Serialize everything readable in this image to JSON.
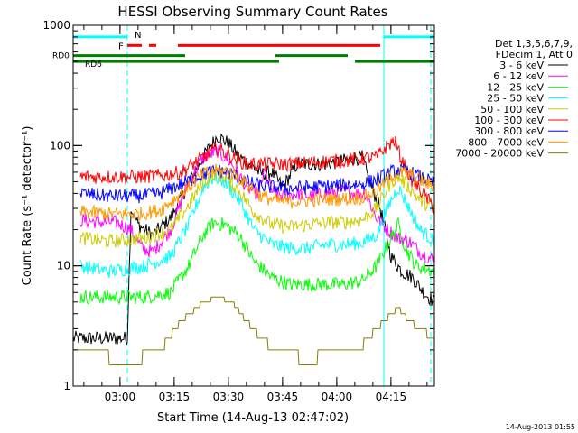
{
  "chart_data": {
    "type": "line",
    "title": "HESSI Observing Summary Count Rates",
    "xlabel": "Start Time (14-Aug-13 02:47:02)",
    "ylabel": "Count Rate (s⁻¹ detector⁻¹)",
    "yscale": "log",
    "ylim": [
      1,
      1000
    ],
    "xlim_minutes": [
      0,
      100
    ],
    "grid": false,
    "legend_position": "right",
    "x_tick_labels": [
      "03:00",
      "03:15",
      "03:30",
      "03:45",
      "04:00",
      "04:15"
    ],
    "x_tick_minutes": [
      12.97,
      27.97,
      42.97,
      57.97,
      72.97,
      87.97
    ],
    "y_tick_labels": [
      "1",
      "10",
      "100",
      "1000"
    ],
    "y_tick_values": [
      1,
      10,
      100,
      1000
    ],
    "legend_header": [
      "Det 1,3,5,6,7,9,",
      "FDecim 1, Att 0"
    ],
    "series": [
      {
        "name": "3 - 6 keV",
        "color": "#000000",
        "points": [
          [
            0,
            2.5
          ],
          [
            15,
            2.5
          ],
          [
            16,
            30
          ],
          [
            18,
            22
          ],
          [
            22,
            18
          ],
          [
            27,
            25
          ],
          [
            33,
            55
          ],
          [
            37,
            90
          ],
          [
            40,
            120
          ],
          [
            43,
            105
          ],
          [
            46,
            80
          ],
          [
            49,
            70
          ],
          [
            52,
            58
          ],
          [
            55,
            60
          ],
          [
            58,
            45
          ],
          [
            62,
            70
          ],
          [
            66,
            70
          ],
          [
            70,
            70
          ],
          [
            75,
            75
          ],
          [
            80,
            80
          ],
          [
            82,
            50
          ],
          [
            85,
            30
          ],
          [
            88,
            12
          ],
          [
            91,
            9
          ],
          [
            94,
            8
          ],
          [
            97,
            6
          ],
          [
            100,
            5
          ]
        ]
      },
      {
        "name": "6 - 12 keV",
        "color": "#ff00ff",
        "points": [
          [
            2,
            24
          ],
          [
            8,
            23
          ],
          [
            12,
            23
          ],
          [
            16,
            20
          ],
          [
            19,
            14
          ],
          [
            22,
            13
          ],
          [
            27,
            20
          ],
          [
            32,
            50
          ],
          [
            36,
            80
          ],
          [
            40,
            90
          ],
          [
            44,
            70
          ],
          [
            48,
            45
          ],
          [
            51,
            40
          ],
          [
            53,
            60
          ],
          [
            55,
            42
          ],
          [
            58,
            38
          ],
          [
            62,
            40
          ],
          [
            66,
            38
          ],
          [
            70,
            40
          ],
          [
            74,
            42
          ],
          [
            78,
            40
          ],
          [
            81,
            40
          ],
          [
            84,
            25
          ],
          [
            87,
            20
          ],
          [
            90,
            17
          ],
          [
            93,
            16
          ],
          [
            96,
            13
          ],
          [
            100,
            11
          ]
        ]
      },
      {
        "name": "12 - 25 keV",
        "color": "#00ff00",
        "points": [
          [
            2,
            5.5
          ],
          [
            10,
            5.5
          ],
          [
            20,
            5.5
          ],
          [
            27,
            6
          ],
          [
            32,
            10
          ],
          [
            36,
            18
          ],
          [
            39,
            23
          ],
          [
            42,
            22
          ],
          [
            46,
            18
          ],
          [
            50,
            11
          ],
          [
            55,
            8
          ],
          [
            60,
            7
          ],
          [
            65,
            7
          ],
          [
            70,
            7
          ],
          [
            75,
            7
          ],
          [
            80,
            7.5
          ],
          [
            84,
            10
          ],
          [
            88,
            17
          ],
          [
            90,
            22
          ],
          [
            92,
            14
          ],
          [
            95,
            10
          ],
          [
            100,
            9
          ]
        ]
      },
      {
        "name": "25 - 50 keV",
        "color": "#00ffff",
        "points": [
          [
            2,
            10
          ],
          [
            10,
            9
          ],
          [
            20,
            10
          ],
          [
            27,
            12
          ],
          [
            32,
            22
          ],
          [
            36,
            45
          ],
          [
            39,
            55
          ],
          [
            42,
            50
          ],
          [
            46,
            35
          ],
          [
            50,
            20
          ],
          [
            55,
            15
          ],
          [
            60,
            14
          ],
          [
            65,
            14
          ],
          [
            70,
            15
          ],
          [
            75,
            15
          ],
          [
            80,
            15.5
          ],
          [
            84,
            18
          ],
          [
            88,
            35
          ],
          [
            90,
            45
          ],
          [
            93,
            30
          ],
          [
            96,
            20
          ],
          [
            100,
            16
          ]
        ]
      },
      {
        "name": "50 - 100 keV",
        "color": "#cccc00",
        "points": [
          [
            2,
            17
          ],
          [
            10,
            16
          ],
          [
            20,
            17
          ],
          [
            27,
            20
          ],
          [
            32,
            32
          ],
          [
            36,
            50
          ],
          [
            39,
            58
          ],
          [
            42,
            55
          ],
          [
            46,
            42
          ],
          [
            50,
            28
          ],
          [
            55,
            22
          ],
          [
            60,
            21
          ],
          [
            65,
            22
          ],
          [
            70,
            23
          ],
          [
            75,
            23
          ],
          [
            80,
            24
          ],
          [
            84,
            30
          ],
          [
            88,
            50
          ],
          [
            90,
            55
          ],
          [
            93,
            45
          ],
          [
            96,
            35
          ],
          [
            100,
            30
          ]
        ]
      },
      {
        "name": "100 - 300 keV",
        "color": "#ff0000",
        "points": [
          [
            2,
            55
          ],
          [
            10,
            55
          ],
          [
            18,
            55
          ],
          [
            24,
            56
          ],
          [
            30,
            60
          ],
          [
            36,
            80
          ],
          [
            40,
            95
          ],
          [
            44,
            80
          ],
          [
            48,
            70
          ],
          [
            52,
            70
          ],
          [
            56,
            70
          ],
          [
            60,
            70
          ],
          [
            65,
            72
          ],
          [
            70,
            74
          ],
          [
            75,
            75
          ],
          [
            80,
            78
          ],
          [
            84,
            80
          ],
          [
            87,
            100
          ],
          [
            89,
            110
          ],
          [
            91,
            75
          ],
          [
            94,
            50
          ],
          [
            97,
            40
          ],
          [
            100,
            30
          ]
        ]
      },
      {
        "name": "300 - 800 keV",
        "color": "#0000ff",
        "points": [
          [
            2,
            40
          ],
          [
            10,
            38
          ],
          [
            18,
            38
          ],
          [
            24,
            40
          ],
          [
            30,
            48
          ],
          [
            36,
            58
          ],
          [
            40,
            62
          ],
          [
            44,
            58
          ],
          [
            48,
            50
          ],
          [
            52,
            46
          ],
          [
            56,
            45
          ],
          [
            60,
            44
          ],
          [
            65,
            45
          ],
          [
            70,
            46
          ],
          [
            75,
            47
          ],
          [
            80,
            48
          ],
          [
            84,
            52
          ],
          [
            88,
            60
          ],
          [
            90,
            63
          ],
          [
            93,
            60
          ],
          [
            96,
            55
          ],
          [
            100,
            48
          ]
        ]
      },
      {
        "name": "800 - 7000 keV",
        "color": "#ff9900",
        "points": [
          [
            2,
            28
          ],
          [
            10,
            27
          ],
          [
            18,
            27
          ],
          [
            24,
            29
          ],
          [
            30,
            40
          ],
          [
            36,
            58
          ],
          [
            40,
            62
          ],
          [
            44,
            60
          ],
          [
            48,
            48
          ],
          [
            52,
            38
          ],
          [
            56,
            35
          ],
          [
            60,
            34
          ],
          [
            65,
            35
          ],
          [
            70,
            36
          ],
          [
            75,
            36
          ],
          [
            80,
            37
          ],
          [
            84,
            42
          ],
          [
            88,
            55
          ],
          [
            90,
            60
          ],
          [
            93,
            58
          ],
          [
            96,
            52
          ],
          [
            100,
            45
          ]
        ]
      },
      {
        "name": "7000 - 20000 keV",
        "color": "#808000",
        "points": [
          [
            0,
            2
          ],
          [
            8,
            1.8
          ],
          [
            16,
            1.6
          ],
          [
            24,
            2
          ],
          [
            30,
            3.5
          ],
          [
            36,
            5
          ],
          [
            40,
            5.5
          ],
          [
            44,
            5
          ],
          [
            48,
            3.5
          ],
          [
            52,
            2.5
          ],
          [
            56,
            2
          ],
          [
            60,
            1.8
          ],
          [
            65,
            1.7
          ],
          [
            70,
            1.8
          ],
          [
            75,
            2
          ],
          [
            80,
            2.2
          ],
          [
            84,
            3
          ],
          [
            88,
            4
          ],
          [
            90,
            4.5
          ],
          [
            93,
            3.5
          ],
          [
            96,
            3
          ],
          [
            100,
            2.5
          ]
        ]
      }
    ],
    "flag_bars": [
      {
        "label": "N",
        "color": "#00ffff",
        "y_value": 800,
        "segments": [
          [
            0,
            15
          ],
          [
            86,
            100
          ]
        ]
      },
      {
        "label": "F",
        "color": "#ff0000",
        "y_value": 680,
        "segments": [
          [
            15,
            19
          ],
          [
            21,
            23
          ],
          [
            29,
            85
          ]
        ]
      },
      {
        "label": "RD0",
        "color": "#008000",
        "y_value": 560,
        "segments": [
          [
            0,
            31
          ],
          [
            56,
            76
          ]
        ]
      },
      {
        "label": "RD6",
        "color": "#008000",
        "y_value": 500,
        "segments": [
          [
            0,
            31
          ],
          [
            31,
            57
          ],
          [
            78,
            100
          ]
        ]
      }
    ],
    "vertical_lines": [
      {
        "minute": 0,
        "color": "#00ffff",
        "style": "solid"
      },
      {
        "minute": 15,
        "color": "#00ffff",
        "style": "dashed"
      },
      {
        "minute": 86,
        "color": "#00ffff",
        "style": "solid"
      },
      {
        "minute": 99,
        "color": "#00ffff",
        "style": "dashed"
      }
    ],
    "timestamp": "14-Aug-2013 01:55"
  }
}
